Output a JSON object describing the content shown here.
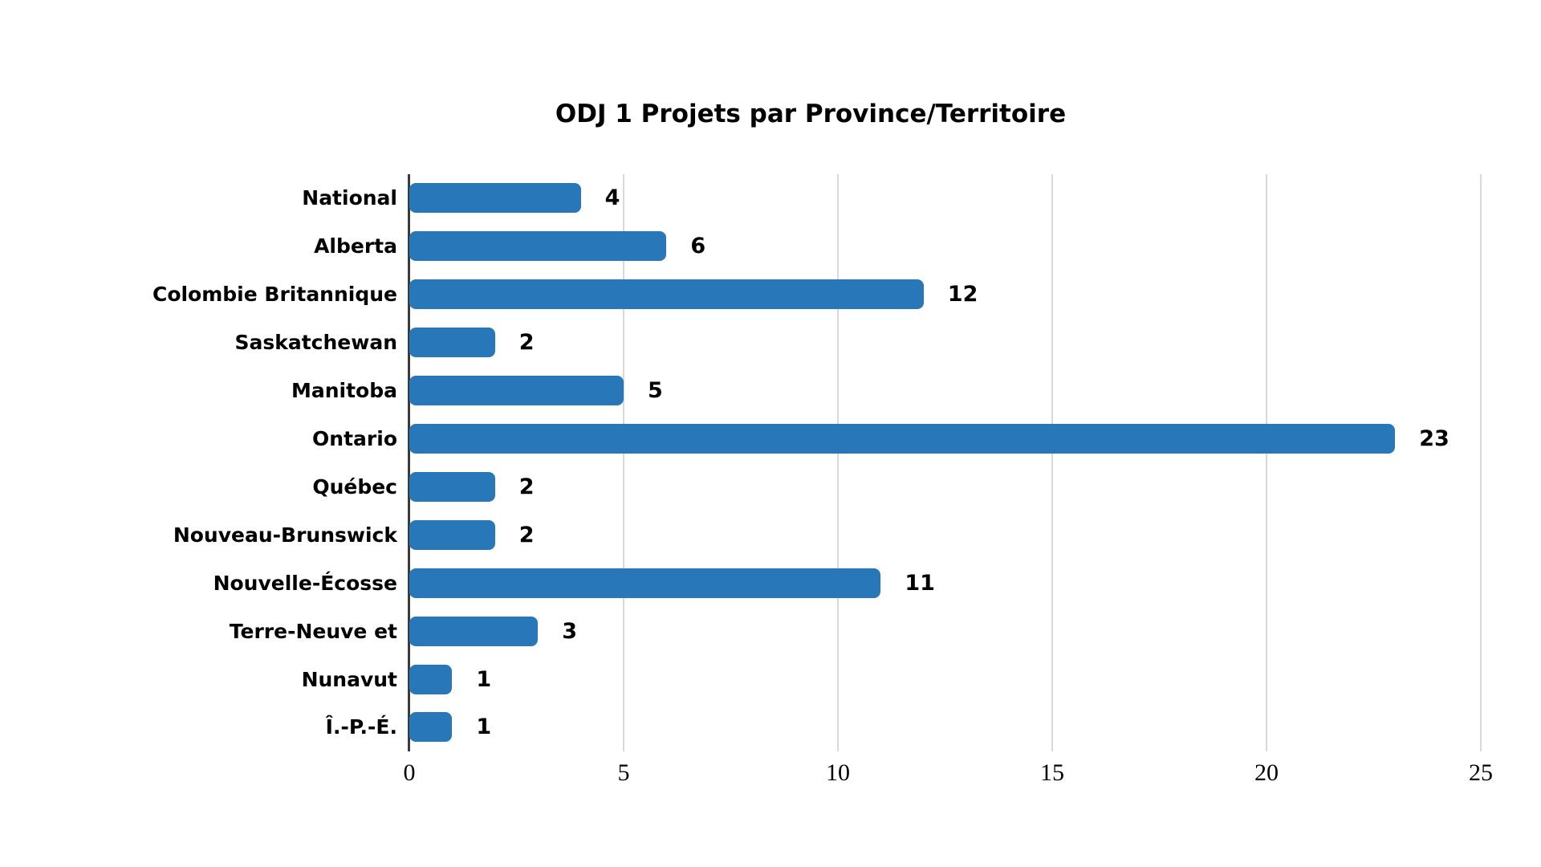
{
  "page": {
    "background": "#ffffff"
  },
  "chart_data": {
    "type": "bar",
    "orientation": "horizontal",
    "title": "ODJ 1 Projets par Province/Territoire",
    "categories": [
      "National",
      "Alberta",
      "Colombie Britannique",
      "Saskatchewan",
      "Manitoba",
      "Ontario",
      "Québec",
      "Nouveau-Brunswick",
      "Nouvelle-Écosse",
      "Terre-Neuve et",
      "Nunavut",
      "Î.-P.-É."
    ],
    "values": [
      4,
      6,
      12,
      2,
      5,
      23,
      2,
      2,
      11,
      3,
      1,
      1
    ],
    "data_labels": [
      "4",
      "6",
      "12",
      "2",
      "5",
      "23",
      "2",
      "2",
      "11",
      "3",
      "1",
      "1"
    ],
    "xlabel": "",
    "ylabel": "",
    "xlim": [
      0,
      25
    ],
    "xticks": [
      "0",
      "5",
      "10",
      "15",
      "20",
      "25"
    ],
    "grid": "vertical-only",
    "legend": "none",
    "colors": {
      "bar": "#2878B9",
      "gridline": "#D9D9D9",
      "axis_line": "#3A3A3A",
      "text": "#000000",
      "background": "#FFFFFF"
    }
  }
}
